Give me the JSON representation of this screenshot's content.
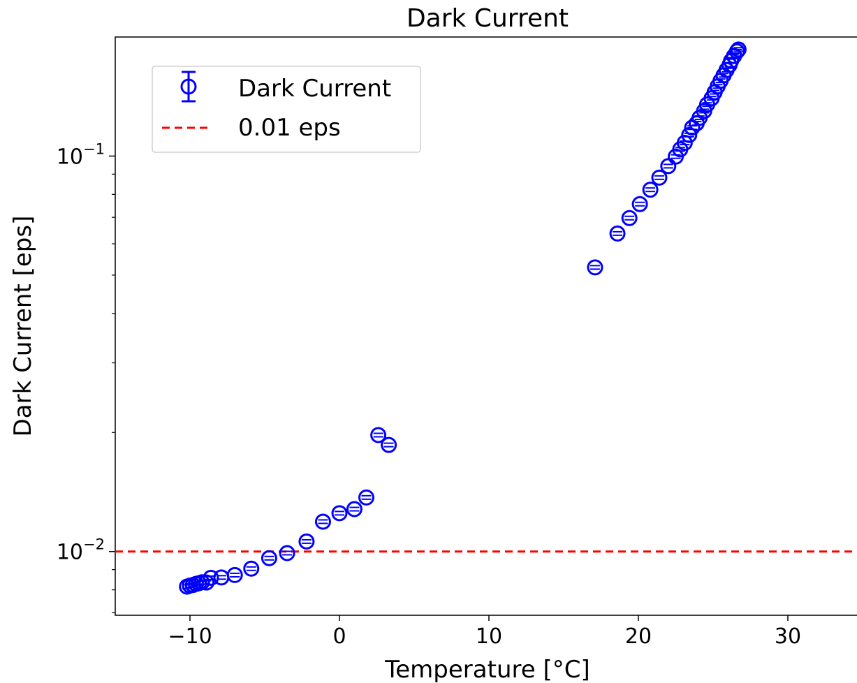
{
  "chart_data": {
    "type": "scatter",
    "title": "Dark Current",
    "xlabel": "Temperature [$^{\\circ}$C]",
    "xlabel_display": "Temperature [°C]",
    "ylabel": "Dark Current [eps]",
    "xlim": [
      -15,
      35
    ],
    "ylim": [
      0.0069,
      0.2
    ],
    "yscale": "log",
    "grid": false,
    "legend_position": "top-left",
    "x_ticks": [
      -10,
      0,
      10,
      20,
      30
    ],
    "x_tick_labels": [
      "−10",
      "0",
      "10",
      "20",
      "30"
    ],
    "y_ticks": [
      {
        "value": 0.1,
        "base": "10",
        "exp": "−1"
      },
      {
        "value": 0.01,
        "base": "10",
        "exp": "−2"
      }
    ],
    "series": [
      {
        "name": "Dark Current",
        "color": "#0000ff",
        "marker": "open-circle-errorbar",
        "x": [
          -10.2,
          -10.0,
          -9.8,
          -9.6,
          -9.4,
          -9.2,
          -8.9,
          -8.6,
          -7.9,
          -7.0,
          -5.9,
          -4.7,
          -3.5,
          -2.2,
          -1.1,
          0.0,
          1.0,
          1.8,
          2.6,
          3.3,
          17.1,
          18.6,
          19.4,
          20.1,
          20.8,
          21.4,
          22.0,
          22.5,
          22.8,
          23.1,
          23.4,
          23.6,
          23.9,
          24.1,
          24.4,
          24.6,
          24.9,
          25.1,
          25.3,
          25.5,
          25.7,
          25.9,
          26.1,
          26.2,
          26.4,
          26.6,
          26.7
        ],
        "y": [
          0.00815,
          0.0082,
          0.00823,
          0.00828,
          0.00832,
          0.00836,
          0.00835,
          0.00858,
          0.0086,
          0.00872,
          0.00905,
          0.00962,
          0.00991,
          0.0106,
          0.0119,
          0.0125,
          0.0128,
          0.0137,
          0.0197,
          0.0186,
          0.0523,
          0.0637,
          0.0697,
          0.0756,
          0.0822,
          0.0882,
          0.0943,
          0.0997,
          0.104,
          0.108,
          0.113,
          0.118,
          0.121,
          0.125,
          0.13,
          0.135,
          0.14,
          0.145,
          0.15,
          0.155,
          0.16,
          0.165,
          0.17,
          0.174,
          0.179,
          0.184,
          0.186
        ]
      },
      {
        "name": "0.01 eps",
        "color": "#ff0000",
        "style": "dashed-hline",
        "y_value": 0.01
      }
    ]
  }
}
